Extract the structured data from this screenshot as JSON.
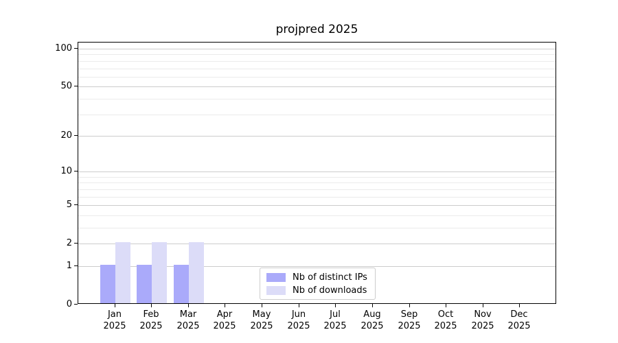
{
  "chart_data": {
    "type": "bar",
    "title": "projpred 2025",
    "categories": [
      "Jan",
      "Feb",
      "Mar",
      "Apr",
      "May",
      "Jun",
      "Jul",
      "Aug",
      "Sep",
      "Oct",
      "Nov",
      "Dec"
    ],
    "year_label": "2025",
    "series": [
      {
        "name": "Nb of distinct IPs",
        "color": "#aaaafa",
        "values": [
          1,
          1,
          1,
          0,
          0,
          0,
          0,
          0,
          0,
          0,
          0,
          0
        ]
      },
      {
        "name": "Nb of downloads",
        "color": "#dcdcf8",
        "values": [
          2,
          2,
          2,
          0,
          0,
          0,
          0,
          0,
          0,
          0,
          0,
          0
        ]
      }
    ],
    "yscale": "log1p",
    "ylim": [
      0,
      112
    ],
    "y_major_ticks": [
      0,
      1,
      2,
      5,
      10,
      20,
      50,
      100
    ],
    "y_minor_gridlines": [
      3,
      4,
      6,
      7,
      8,
      9,
      30,
      40,
      60,
      70,
      80,
      90
    ],
    "grid": true,
    "legend_position": "bottom-center-inside"
  },
  "colors": {
    "major_grid": "#cccccc",
    "minor_grid": "#ebebeb",
    "axis": "#000000",
    "legend_border": "#cccccc",
    "background": "#ffffff"
  }
}
